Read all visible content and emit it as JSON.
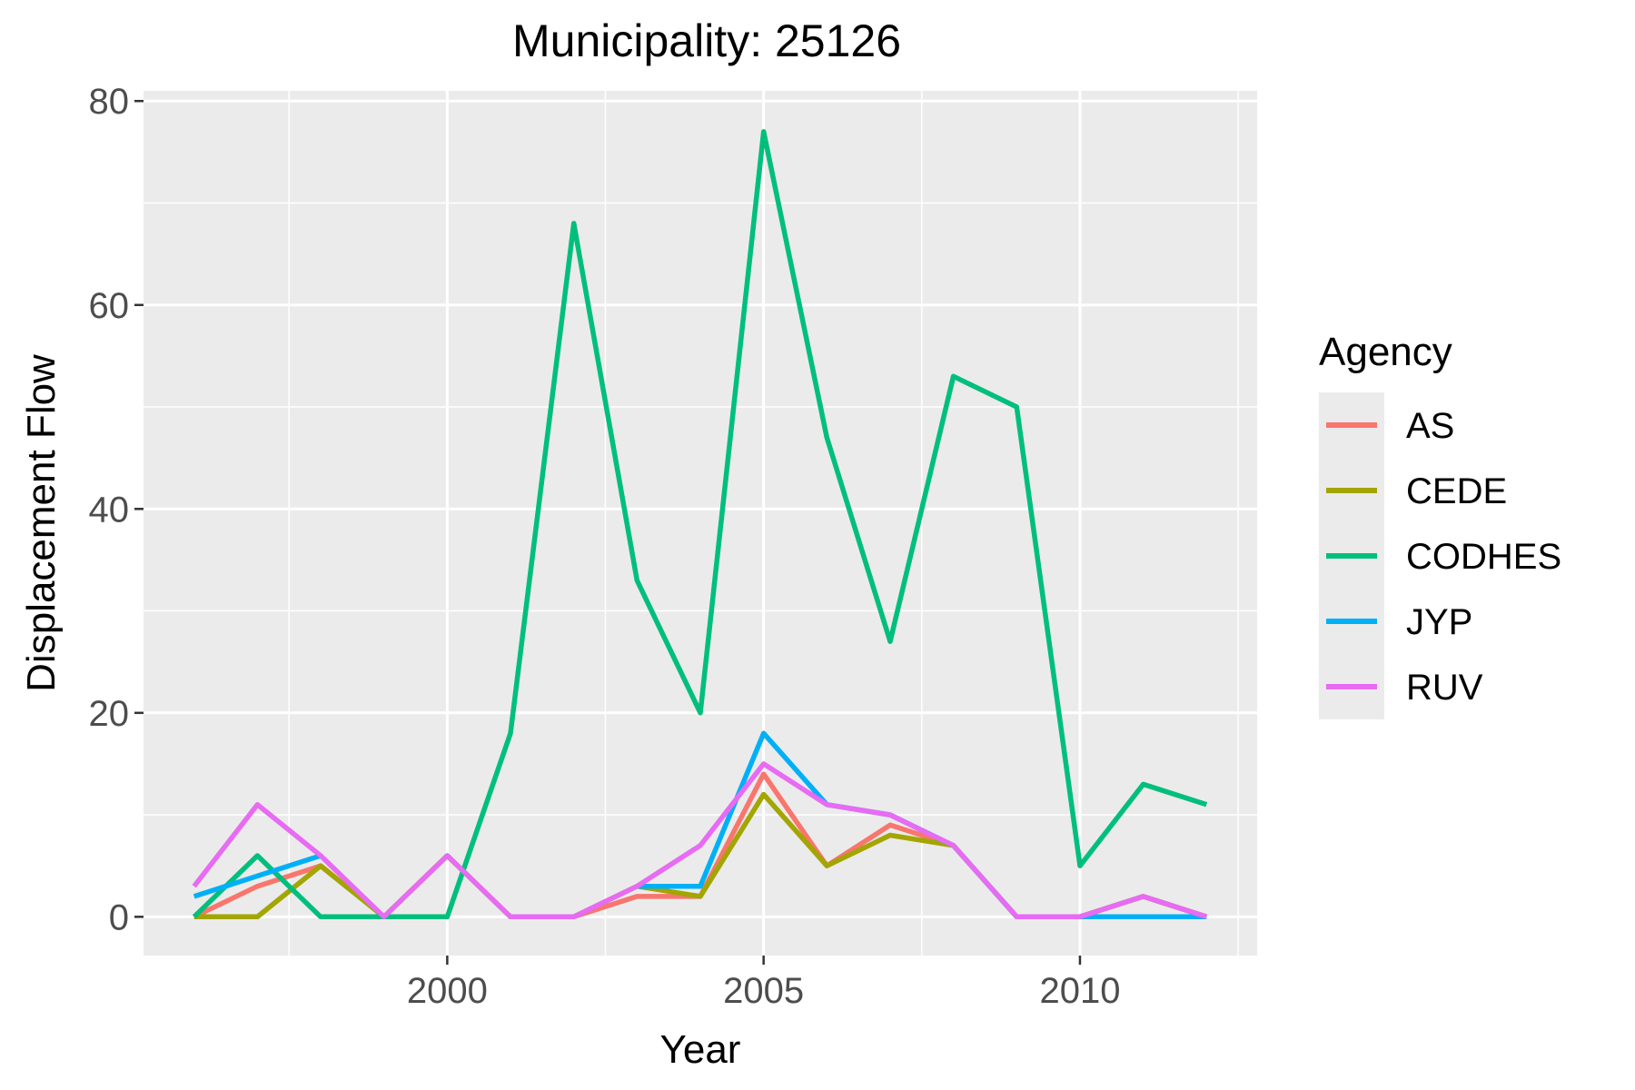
{
  "chart_data": {
    "type": "line",
    "title": "Municipality: 25126",
    "xlabel": "Year",
    "ylabel": "Displacement Flow",
    "xlim": [
      1995.2,
      2012.8
    ],
    "ylim": [
      -3.8,
      81
    ],
    "x_ticks": [
      2000,
      2005,
      2010
    ],
    "y_ticks": [
      0,
      20,
      40,
      60,
      80
    ],
    "grid": true,
    "legend": {
      "title": "Agency",
      "position": "right"
    },
    "x": [
      1996,
      1997,
      1998,
      1999,
      2000,
      2001,
      2002,
      2003,
      2004,
      2005,
      2006,
      2007,
      2008,
      2009,
      2010,
      2011,
      2012
    ],
    "series": [
      {
        "name": "AS",
        "color": "#F8766D",
        "values": [
          0,
          3,
          5,
          0,
          6,
          0,
          0,
          2,
          2,
          14,
          5,
          9,
          7,
          0,
          0,
          2,
          0
        ]
      },
      {
        "name": "CEDE",
        "color": "#A3A500",
        "values": [
          0,
          0,
          5,
          0,
          6,
          0,
          0,
          3,
          2,
          12,
          5,
          8,
          7,
          0,
          0,
          2,
          0
        ]
      },
      {
        "name": "CODHES",
        "color": "#00BF7D",
        "values": [
          0,
          6,
          0,
          0,
          0,
          18,
          68,
          33,
          20,
          77,
          47,
          27,
          53,
          50,
          5,
          13,
          11
        ]
      },
      {
        "name": "JYP",
        "color": "#00B0F6",
        "values": [
          2,
          4,
          6,
          null,
          null,
          null,
          null,
          3,
          3,
          18,
          11,
          10,
          7,
          0,
          0,
          0,
          0
        ]
      },
      {
        "name": "RUV",
        "color": "#E76BF3",
        "values": [
          3,
          11,
          6,
          0,
          6,
          0,
          0,
          3,
          7,
          15,
          11,
          10,
          7,
          0,
          0,
          2,
          0
        ]
      }
    ]
  }
}
